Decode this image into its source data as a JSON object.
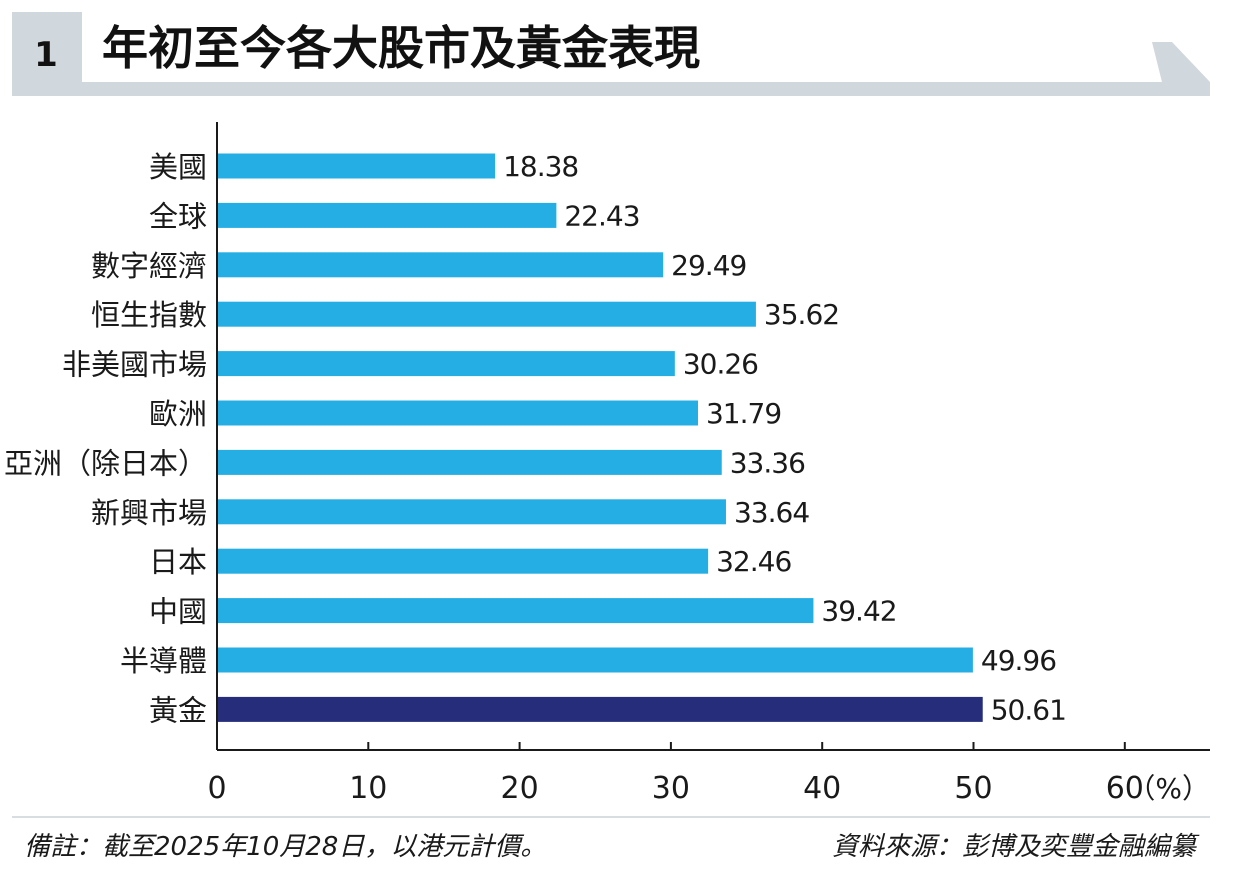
{
  "header": {
    "figure_number": "1",
    "title": "年初至今各大股市及黃金表現"
  },
  "colors": {
    "bar": "#24aee4",
    "highlight_bar": "#262e7c",
    "header_bg": "#d0d7dd",
    "axis": "#1a1a1a"
  },
  "chart_data": {
    "type": "bar",
    "orientation": "horizontal",
    "title": "年初至今各大股市及黃金表現",
    "categories": [
      "美國",
      "全球",
      "數字經濟",
      "恒生指數",
      "非美國市場",
      "歐洲",
      "亞洲（除日本）",
      "新興市場",
      "日本",
      "中國",
      "半導體",
      "黃金"
    ],
    "values": [
      18.38,
      22.43,
      29.49,
      35.62,
      30.26,
      31.79,
      33.36,
      33.64,
      32.46,
      39.42,
      49.96,
      50.61
    ],
    "value_labels": [
      "18.38",
      "22.43",
      "29.49",
      "35.62",
      "30.26",
      "31.79",
      "33.36",
      "33.64",
      "32.46",
      "39.42",
      "49.96",
      "50.61"
    ],
    "highlight_category": "黃金",
    "xlim": [
      0,
      65
    ],
    "x_ticks": [
      0,
      10,
      20,
      30,
      40,
      50,
      60
    ],
    "x_tick_labels": [
      "0",
      "10",
      "20",
      "30",
      "40",
      "50",
      "60"
    ],
    "x_unit_label": "（%）",
    "xlabel": "",
    "ylabel": "",
    "grid": false
  },
  "footer": {
    "note": "備註：截至2025年10月28日，以港元計價。",
    "source": "資料來源：彭博及奕豐金融編纂"
  }
}
